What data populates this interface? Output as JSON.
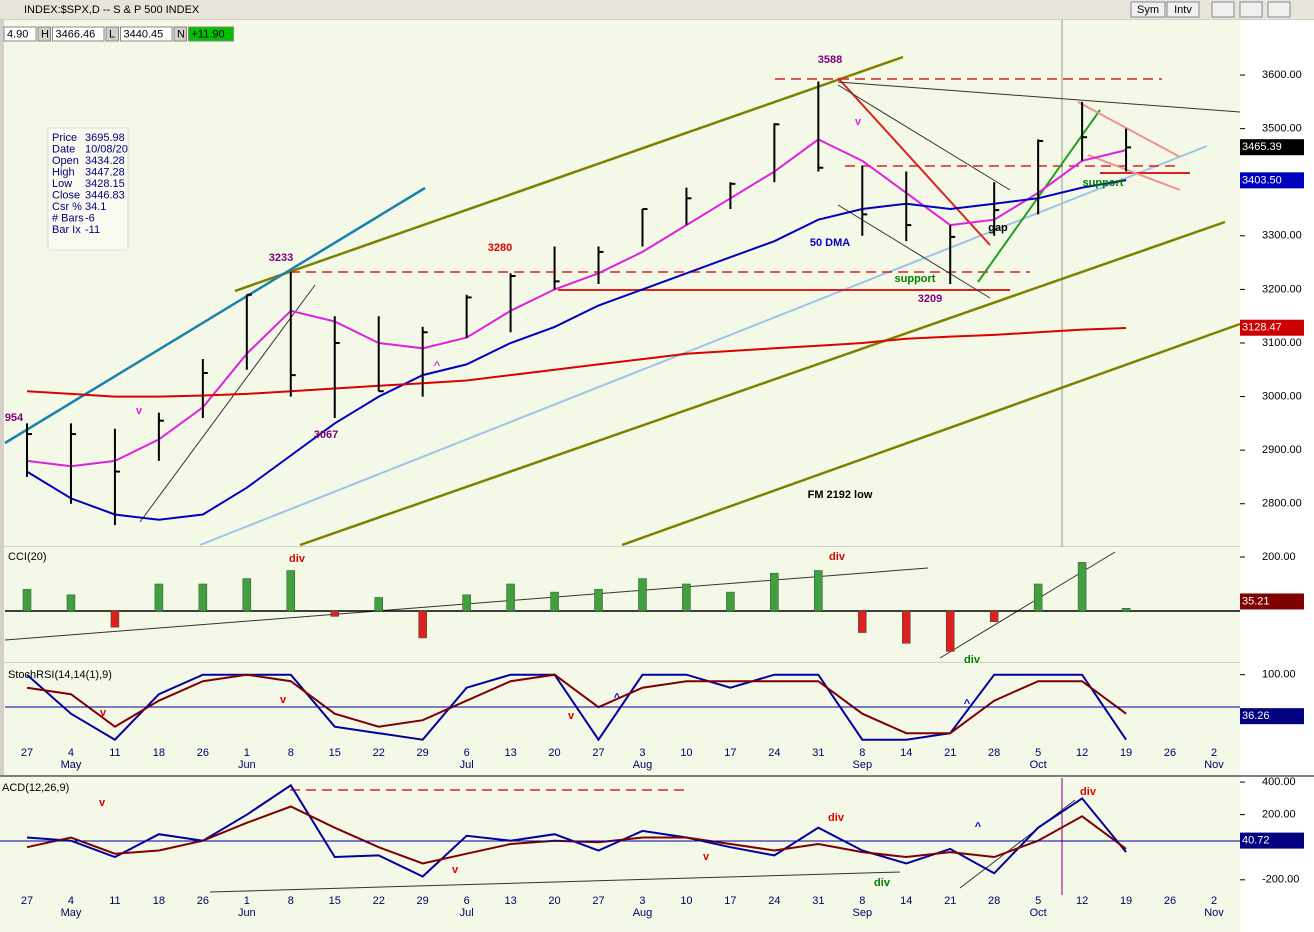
{
  "header": {
    "fields": [
      "4.90",
      "H",
      "3466.46",
      "L",
      "3440.45",
      "N",
      "+11.90"
    ],
    "buttons": [
      "Sym",
      "Intv"
    ]
  },
  "info_box": [
    [
      "Price",
      "3695.98"
    ],
    [
      "Date",
      "10/08/20"
    ],
    [
      "Open",
      "3434.28"
    ],
    [
      "High",
      "3447.28"
    ],
    [
      "Low",
      "3428.15"
    ],
    [
      "Close",
      "3446.83"
    ],
    [
      "Csr %",
      "34.1"
    ],
    [
      "# Bars",
      "-6"
    ],
    [
      "Bar Ix",
      "-11"
    ]
  ],
  "chart_data": [
    {
      "type": "ohlc",
      "title": "INDEX:$SPX,D -- S & P 500 INDEX",
      "color": "#000000",
      "categories": [
        "27",
        "4",
        "11",
        "18",
        "26",
        "1",
        "8",
        "15",
        "22",
        "29",
        "6",
        "13",
        "20",
        "27",
        "3",
        "10",
        "17",
        "24",
        "31",
        "8",
        "14",
        "21",
        "28",
        "5",
        "12",
        "19",
        "26",
        "2"
      ],
      "month_labels": [
        null,
        "May",
        null,
        null,
        null,
        "Jun",
        null,
        null,
        null,
        null,
        "Jul",
        null,
        null,
        null,
        "Aug",
        null,
        null,
        null,
        null,
        "Sep",
        null,
        null,
        null,
        "Oct",
        null,
        null,
        null,
        "Nov"
      ],
      "high": [
        2950,
        2950,
        2940,
        2970,
        3070,
        3190,
        3233,
        3150,
        3150,
        3130,
        3190,
        3230,
        3280,
        3280,
        3350,
        3390,
        3400,
        3510,
        3588,
        3430,
        3420,
        3320,
        3400,
        3480,
        3550,
        3500,
        null,
        null
      ],
      "low": [
        2850,
        2800,
        2760,
        2880,
        2960,
        3050,
        3000,
        2960,
        3010,
        3000,
        3110,
        3120,
        3200,
        3210,
        3280,
        3320,
        3350,
        3400,
        3420,
        3300,
        3290,
        3210,
        3300,
        3340,
        3440,
        3420,
        null,
        null
      ],
      "close": [
        2930,
        2930,
        2860,
        2955,
        3044,
        3190,
        3040,
        3100,
        3010,
        3120,
        3185,
        3225,
        3215,
        3270,
        3350,
        3370,
        3397,
        3508,
        3427,
        3340,
        3320,
        3298,
        3348,
        3477,
        3484,
        3465,
        null,
        null
      ],
      "overlays": [
        {
          "color": "#e020e0",
          "values": [
            2880,
            2870,
            2880,
            2920,
            2980,
            3080,
            3160,
            3140,
            3100,
            3090,
            3110,
            3160,
            3200,
            3230,
            3270,
            3320,
            3370,
            3420,
            3480,
            3440,
            3380,
            3320,
            3330,
            3380,
            3440,
            3460,
            null,
            null
          ]
        },
        {
          "color": "#0000c0",
          "values": [
            2860,
            2810,
            2780,
            2770,
            2780,
            2830,
            2890,
            2950,
            3000,
            3040,
            3060,
            3100,
            3130,
            3170,
            3200,
            3230,
            3260,
            3290,
            3330,
            3350,
            3360,
            3350,
            3360,
            3370,
            3390,
            3404,
            null,
            null
          ]
        },
        {
          "color": "#dd0000",
          "values": [
            3010,
            3005,
            3000,
            3000,
            3002,
            3005,
            3010,
            3015,
            3020,
            3025,
            3030,
            3040,
            3050,
            3060,
            3070,
            3080,
            3085,
            3090,
            3095,
            3100,
            3108,
            3112,
            3115,
            3120,
            3125,
            3128,
            null,
            null
          ]
        }
      ],
      "ylim": [
        2723,
        3699
      ],
      "yticks": [
        {
          "value": 2800,
          "label": "2800.00"
        },
        {
          "value": 2900,
          "label": "2900.00"
        },
        {
          "value": 3000,
          "label": "3000.00"
        },
        {
          "value": 3100,
          "label": "3100.00"
        },
        {
          "value": 3200,
          "label": "3200.00"
        },
        {
          "value": 3300,
          "label": "3300.00"
        },
        {
          "value": 3400,
          "label": "3400.00"
        },
        {
          "value": 3500,
          "label": "3500.00"
        },
        {
          "value": 3600,
          "label": "3600.00"
        }
      ],
      "price_tags": [
        {
          "value": 3465.39,
          "color": "#000000"
        },
        {
          "value": 3403.5,
          "label": "3403.50",
          "color": "#0000c0"
        },
        {
          "value": 3128.47,
          "color": "#cc0000"
        }
      ],
      "annotations": [
        {
          "text": "3588",
          "color": "#800080"
        },
        {
          "text": "3233",
          "color": "#800080"
        },
        {
          "text": "3280",
          "color": "#dd0000"
        },
        {
          "text": "3067",
          "color": "#800080"
        },
        {
          "text": "3209",
          "color": "#800080"
        },
        {
          "text": "954",
          "color": "#800080"
        },
        {
          "text": "v",
          "color": "#e020e0"
        },
        {
          "text": "v",
          "color": "#e020e0"
        },
        {
          "text": "50 DMA",
          "color": "#0000c0"
        },
        {
          "text": "support",
          "color": "#008000"
        },
        {
          "text": "support",
          "color": "#008000"
        },
        {
          "text": "gap",
          "color": "#000000"
        },
        {
          "text": "FM 2192 low",
          "color": "#000000"
        },
        {
          "text": "^",
          "color": "#e020e0"
        }
      ]
    },
    {
      "type": "bar",
      "label": "CCI(20)",
      "color": "#40a040",
      "negative_color": "#dd2020",
      "values": [
        80,
        60,
        -60,
        100,
        100,
        120,
        150,
        -20,
        50,
        -100,
        60,
        100,
        70,
        80,
        120,
        100,
        70,
        140,
        150,
        -80,
        -120,
        -150,
        -40,
        100,
        180,
        10,
        null,
        null
      ],
      "ylim": [
        -189,
        237
      ],
      "yticks": [
        {
          "value": 200,
          "label": "200.00"
        }
      ],
      "price_tags": [
        {
          "value": 35.21,
          "color": "#800000"
        }
      ],
      "annotations": [
        {
          "text": "div",
          "color": "#dd0000"
        },
        {
          "text": "div",
          "color": "#dd0000"
        },
        {
          "text": "div",
          "color": "#008000"
        }
      ]
    },
    {
      "type": "line",
      "label": "StochRSI(14,14(1),9)",
      "series": [
        {
          "color": "#0000a0",
          "values": [
            100,
            40,
            0,
            70,
            100,
            100,
            100,
            20,
            10,
            0,
            80,
            100,
            100,
            0,
            100,
            100,
            80,
            100,
            100,
            0,
            0,
            10,
            100,
            100,
            100,
            0,
            null,
            null
          ]
        },
        {
          "color": "#800000",
          "values": [
            80,
            70,
            20,
            60,
            90,
            100,
            90,
            40,
            20,
            30,
            60,
            90,
            100,
            50,
            80,
            90,
            90,
            90,
            90,
            40,
            10,
            10,
            60,
            90,
            90,
            40,
            null,
            null
          ]
        }
      ],
      "ylim": [
        -5,
        118
      ],
      "yticks": [
        {
          "value": 100,
          "label": "100.00"
        }
      ],
      "price_tags": [
        {
          "value": 36.26,
          "color": "#000080"
        }
      ],
      "annotations": [
        {
          "text": "v",
          "color": "#dd0000"
        },
        {
          "text": "v",
          "color": "#dd0000"
        },
        {
          "text": "v",
          "color": "#dd0000"
        },
        {
          "text": "^",
          "color": "#0000dd"
        },
        {
          "text": "^",
          "color": "#0000dd"
        }
      ]
    },
    {
      "type": "line",
      "label": "ACD(12,26,9)",
      "categories": [
        "27",
        "4",
        "11",
        "18",
        "26",
        "1",
        "8",
        "15",
        "22",
        "29",
        "6",
        "13",
        "20",
        "27",
        "3",
        "10",
        "17",
        "24",
        "31",
        "8",
        "14",
        "21",
        "28",
        "5",
        "12",
        "19",
        "26",
        "2"
      ],
      "month_labels": [
        null,
        "May",
        null,
        null,
        null,
        "Jun",
        null,
        null,
        null,
        null,
        "Jul",
        null,
        null,
        null,
        "Aug",
        null,
        null,
        null,
        null,
        "Sep",
        null,
        null,
        null,
        "Oct",
        null,
        null,
        null,
        "Nov"
      ],
      "series": [
        {
          "color": "#0000a0",
          "values": [
            60,
            40,
            -60,
            80,
            40,
            200,
            380,
            -60,
            -50,
            -180,
            70,
            40,
            80,
            -20,
            100,
            60,
            0,
            -50,
            120,
            -20,
            -100,
            -10,
            -160,
            120,
            300,
            -30,
            null,
            null
          ]
        },
        {
          "color": "#800000",
          "values": [
            0,
            60,
            -40,
            -20,
            40,
            150,
            250,
            120,
            0,
            -100,
            -40,
            20,
            40,
            30,
            60,
            60,
            20,
            -20,
            20,
            -30,
            -60,
            -30,
            -60,
            40,
            190,
            -10,
            null,
            null
          ]
        }
      ],
      "ylim": [
        -281,
        425
      ],
      "yticks": [
        {
          "value": 400,
          "label": "400.00"
        },
        {
          "value": 200,
          "label": "200.00"
        },
        {
          "value": -200,
          "label": "-200.00"
        }
      ],
      "price_tags": [
        {
          "value": 40.72,
          "color": "#000080"
        }
      ],
      "annotations": [
        {
          "text": "v",
          "color": "#dd0000"
        },
        {
          "text": "v",
          "color": "#dd0000"
        },
        {
          "text": "v",
          "color": "#dd0000"
        },
        {
          "text": "div",
          "color": "#dd0000"
        },
        {
          "text": "div",
          "color": "#008000"
        },
        {
          "text": "^",
          "color": "#0000dd"
        },
        {
          "text": "div",
          "color": "#dd0000"
        }
      ]
    }
  ]
}
